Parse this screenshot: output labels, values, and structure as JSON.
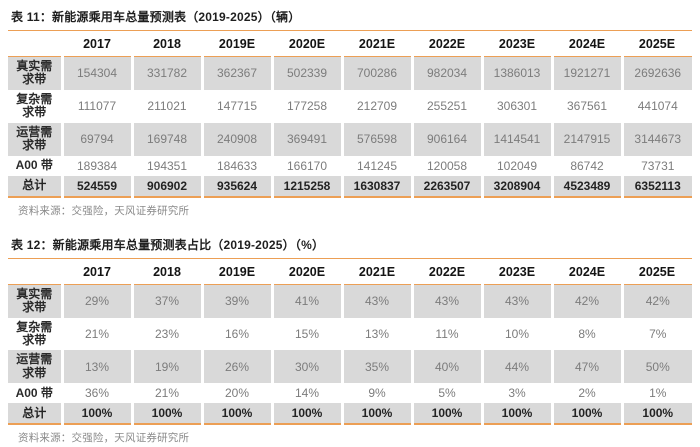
{
  "colors": {
    "accent_orange": "#EC9F55",
    "row_stripe_gray": "#D9D9D9",
    "value_text_gray": "#7C7C7C",
    "title_text_dark": "#1F1F1F",
    "source_text_gray": "#8A8A8A"
  },
  "tables": [
    {
      "title": "表 11：新能源乘用车总量预测表（2019-2025）（辆）",
      "columns": [
        "2017",
        "2018",
        "2019E",
        "2020E",
        "2021E",
        "2022E",
        "2023E",
        "2024E",
        "2025E"
      ],
      "rows": [
        {
          "label": "真实需求带",
          "values": [
            "154304",
            "331782",
            "362367",
            "502339",
            "700286",
            "982034",
            "1386013",
            "1921271",
            "2692636"
          ]
        },
        {
          "label": "复杂需求带",
          "values": [
            "111077",
            "211021",
            "147715",
            "177258",
            "212709",
            "255251",
            "306301",
            "367561",
            "441074"
          ]
        },
        {
          "label": "运营需求带",
          "values": [
            "69794",
            "169748",
            "240908",
            "369491",
            "576598",
            "906164",
            "1414541",
            "2147915",
            "3144673"
          ]
        },
        {
          "label": "A00 带",
          "values": [
            "189384",
            "194351",
            "184633",
            "166170",
            "141245",
            "120058",
            "102049",
            "86742",
            "73731"
          ]
        },
        {
          "label": "总计",
          "values": [
            "524559",
            "906902",
            "935624",
            "1215258",
            "1630837",
            "2263507",
            "3208904",
            "4523489",
            "6352113"
          ]
        }
      ],
      "source": "资料来源：交强险，天风证券研究所"
    },
    {
      "title": "表 12：新能源乘用车总量预测表占比（2019-2025）（%）",
      "columns": [
        "2017",
        "2018",
        "2019E",
        "2020E",
        "2021E",
        "2022E",
        "2023E",
        "2024E",
        "2025E"
      ],
      "rows": [
        {
          "label": "真实需求带",
          "values": [
            "29%",
            "37%",
            "39%",
            "41%",
            "43%",
            "43%",
            "43%",
            "42%",
            "42%"
          ]
        },
        {
          "label": "复杂需求带",
          "values": [
            "21%",
            "23%",
            "16%",
            "15%",
            "13%",
            "11%",
            "10%",
            "8%",
            "7%"
          ]
        },
        {
          "label": "运营需求带",
          "values": [
            "13%",
            "19%",
            "26%",
            "30%",
            "35%",
            "40%",
            "44%",
            "47%",
            "50%"
          ]
        },
        {
          "label": "A00 带",
          "values": [
            "36%",
            "21%",
            "20%",
            "14%",
            "9%",
            "5%",
            "3%",
            "2%",
            "1%"
          ]
        },
        {
          "label": "总计",
          "values": [
            "100%",
            "100%",
            "100%",
            "100%",
            "100%",
            "100%",
            "100%",
            "100%",
            "100%"
          ]
        }
      ],
      "source": "资料来源：交强险，天风证券研究所"
    }
  ]
}
